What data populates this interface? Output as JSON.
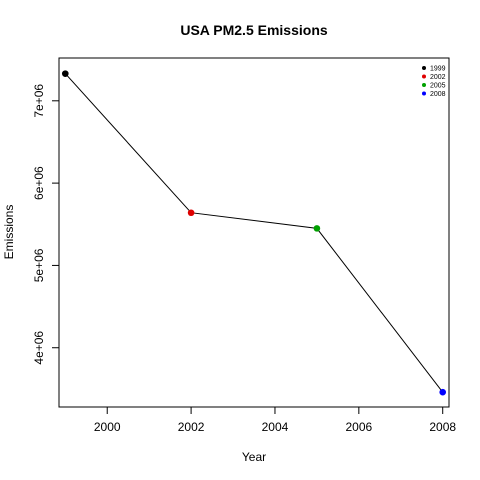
{
  "chart_data": {
    "type": "line",
    "title": "USA PM2.5 Emissions",
    "xlabel": "Year",
    "ylabel": "Emissions",
    "xlim": [
      1998.85,
      2008.15
    ],
    "ylim": [
      3280000,
      7520000
    ],
    "x_ticks": [
      {
        "value": 2000,
        "label": "2000"
      },
      {
        "value": 2002,
        "label": "2002"
      },
      {
        "value": 2004,
        "label": "2004"
      },
      {
        "value": 2006,
        "label": "2006"
      },
      {
        "value": 2008,
        "label": "2008"
      }
    ],
    "y_ticks": [
      {
        "value": 4000000,
        "label": "4e+06"
      },
      {
        "value": 5000000,
        "label": "5e+06"
      },
      {
        "value": 6000000,
        "label": "6e+06"
      },
      {
        "value": 7000000,
        "label": "7e+06"
      }
    ],
    "points": [
      {
        "x": 1999,
        "y": 7330000,
        "color": "#000000",
        "legend": "1999"
      },
      {
        "x": 2002,
        "y": 5640000,
        "color": "#DF0000",
        "legend": "2002"
      },
      {
        "x": 2005,
        "y": 5450000,
        "color": "#00A000",
        "legend": "2005"
      },
      {
        "x": 2008,
        "y": 3460000,
        "color": "#0000FF",
        "legend": "2008"
      }
    ],
    "line_color": "#000000",
    "grid": false,
    "legend_position": "top-right"
  }
}
